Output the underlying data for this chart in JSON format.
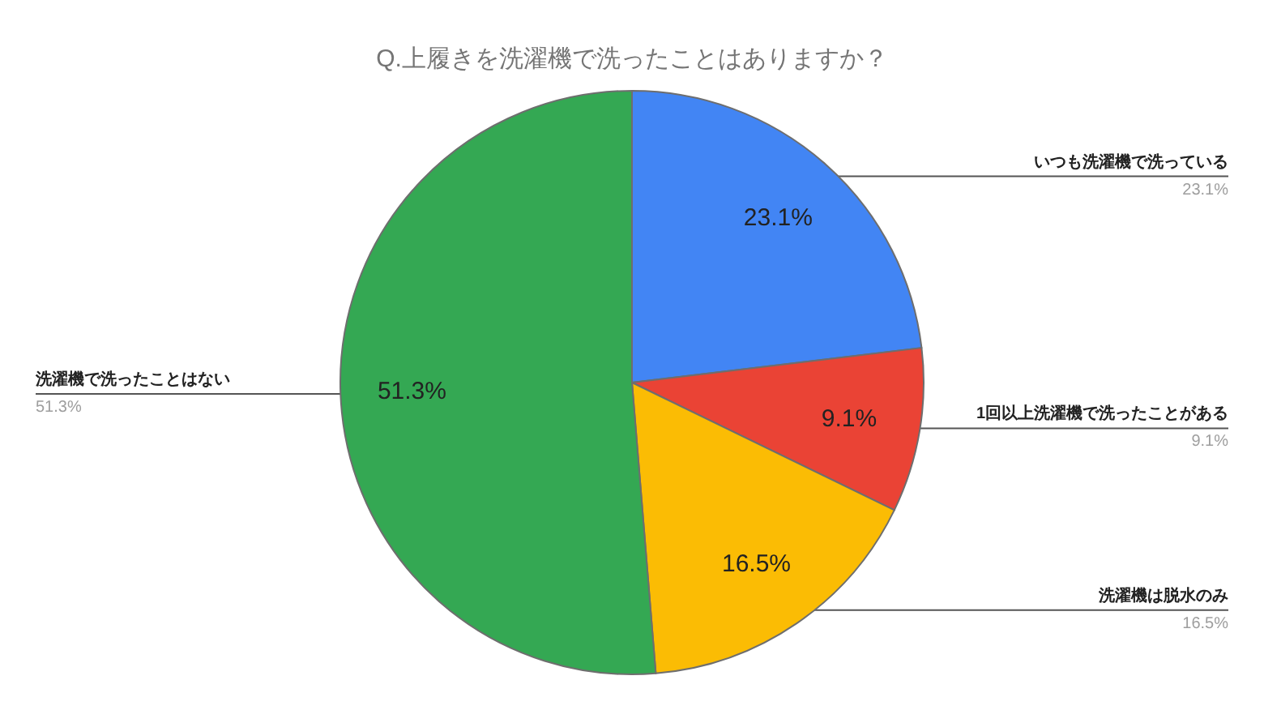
{
  "chart_data": {
    "type": "pie",
    "title": "Q.上履きを洗濯機で洗ったことはありますか？",
    "categories": [
      "いつも洗濯機で洗っている",
      "1回以上洗濯機で洗ったことがある",
      "洗濯機は脱水のみ",
      "洗濯機で洗ったことはない"
    ],
    "values": [
      23.1,
      9.1,
      16.5,
      51.3
    ],
    "colors": [
      "#4285f4",
      "#ea4335",
      "#fbbc04",
      "#34a853"
    ],
    "value_labels": [
      "23.1%",
      "9.1%",
      "16.5%",
      "51.3%"
    ]
  }
}
